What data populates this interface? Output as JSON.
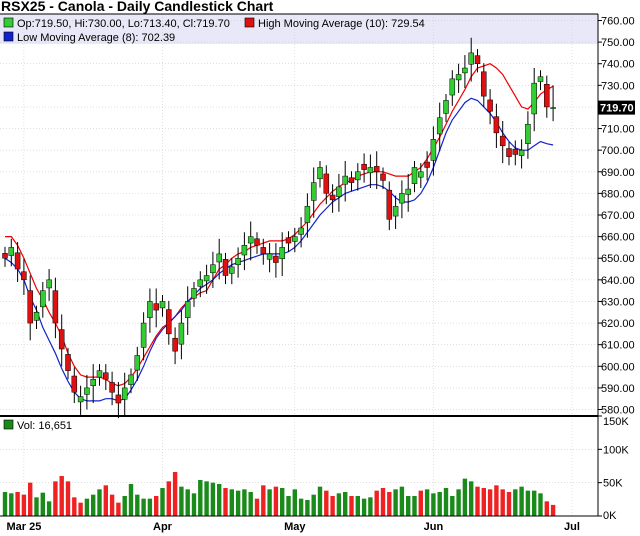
{
  "chart_data": {
    "type": "candlestick",
    "title": "RSX25 - Canola - Daily Candlestick Chart",
    "ohlc_label": "Op:719.50, Hi:730.00, Lo:713.40, Cl:719.70",
    "high_ma_label": "High Moving Average (10): 729.54",
    "low_ma_label": "Low Moving Average (8): 702.39",
    "last_price_label": "719.70",
    "volume_label": "Vol: 16,651",
    "grid": true,
    "price_axis": {
      "min": 577,
      "max": 763,
      "ticks": [
        580,
        590,
        600,
        610,
        620,
        630,
        640,
        650,
        660,
        670,
        680,
        690,
        700,
        710,
        720,
        730,
        740,
        750,
        760
      ],
      "tick_labels": [
        "580.00",
        "590.00",
        "600.00",
        "610.00",
        "620.00",
        "630.00",
        "640.00",
        "650.00",
        "660.00",
        "670.00",
        "680.00",
        "690.00",
        "700.00",
        "710.00",
        "720.00",
        "730.00",
        "740.00",
        "750.00",
        "760.00"
      ]
    },
    "volume_axis": {
      "max": 150000,
      "ticks": [
        0,
        50000,
        100000,
        150000
      ],
      "tick_labels": [
        "0K",
        "50K",
        "100K",
        "150K"
      ]
    },
    "x_labels": [
      {
        "label": "Mar 25",
        "index": 3
      },
      {
        "label": "Apr",
        "index": 25
      },
      {
        "label": "May",
        "index": 46
      },
      {
        "label": "Jun",
        "index": 68
      },
      {
        "label": "Jul",
        "index": 90
      }
    ],
    "closes": [
      650,
      655,
      645,
      640,
      620,
      625,
      635,
      640,
      620,
      608,
      598,
      588,
      586,
      590,
      594,
      598,
      594,
      588,
      583,
      590,
      596,
      605,
      620,
      630,
      626,
      630,
      615,
      607,
      620,
      630,
      636,
      640,
      642,
      647,
      652,
      642,
      646,
      650,
      656,
      660,
      656,
      652,
      652,
      648,
      655,
      657,
      660,
      664,
      674,
      685,
      692,
      680,
      677,
      683,
      688,
      685,
      690,
      691,
      692,
      690,
      686,
      668,
      674,
      680,
      682,
      692,
      690,
      692,
      705,
      715,
      723,
      733,
      735,
      738,
      745,
      740,
      725,
      718,
      708,
      702,
      697,
      698,
      700,
      712,
      731,
      734,
      720,
      719.7
    ],
    "volume": [
      36000,
      34000,
      36000,
      32000,
      50000,
      28000,
      35000,
      22000,
      52000,
      60000,
      52000,
      28000,
      20000,
      26000,
      32000,
      40000,
      46000,
      32000,
      20000,
      30000,
      48000,
      32000,
      26000,
      26000,
      30000,
      42000,
      52000,
      66000,
      44000,
      40000,
      34000,
      54000,
      52000,
      50000,
      48000,
      42000,
      40000,
      38000,
      40000,
      36000,
      26000,
      46000,
      40000,
      44000,
      42000,
      30000,
      40000,
      26000,
      24000,
      32000,
      44000,
      38000,
      30000,
      34000,
      36000,
      30000,
      30000,
      26000,
      28000,
      38000,
      42000,
      36000,
      40000,
      44000,
      30000,
      30000,
      38000,
      40000,
      34000,
      36000,
      42000,
      30000,
      40000,
      56000,
      52000,
      44000,
      42000,
      40000,
      46000,
      40000,
      36000,
      40000,
      44000,
      38000,
      38000,
      34000,
      22000,
      16651
    ],
    "high_ma": [
      660,
      660,
      656,
      650,
      643,
      636,
      631,
      625,
      620,
      614,
      606,
      600,
      596,
      595,
      595,
      595,
      594,
      592,
      591,
      592,
      595,
      599,
      604,
      609,
      614,
      618,
      620,
      623,
      627,
      630,
      632,
      634,
      635,
      640,
      645,
      647,
      650,
      652,
      653,
      655,
      656,
      657,
      658,
      658,
      658,
      659,
      661,
      664,
      667,
      671,
      675,
      678,
      681,
      683,
      685,
      686,
      688,
      689,
      690,
      690,
      690,
      689,
      688,
      688,
      688,
      690,
      692,
      696,
      701,
      706,
      712,
      718,
      723,
      728,
      734,
      738,
      739,
      740,
      738,
      735,
      730,
      725,
      720,
      719,
      722,
      726,
      728,
      729.54
    ],
    "low_ma": [
      650,
      648,
      645,
      640,
      632,
      626,
      618,
      612,
      606,
      599,
      593,
      588,
      585,
      584,
      584,
      584,
      585,
      585,
      584,
      585,
      589,
      594,
      600,
      607,
      613,
      617,
      620,
      623,
      626,
      630,
      633,
      636,
      638,
      640,
      643,
      645,
      647,
      648,
      649,
      650,
      651,
      652,
      652,
      652,
      652,
      653,
      655,
      658,
      662,
      666,
      670,
      673,
      676,
      678,
      680,
      681,
      682,
      683,
      684,
      684,
      683,
      681,
      678,
      676,
      676,
      677,
      680,
      685,
      692,
      700,
      708,
      714,
      718,
      722,
      724,
      723,
      720,
      717,
      713,
      708,
      704,
      701,
      700,
      700,
      702,
      704,
      703,
      702.39
    ],
    "colors": {
      "up": "#33cc33",
      "down": "#dd1111",
      "wick": "#000000",
      "high_ma": "#ee0000",
      "low_ma": "#1122cc",
      "volume_up": "#1a8a1a",
      "volume_down": "#ee2222",
      "legend_band": "#e8e8f8",
      "grid": "#cccccc",
      "last_price_box": "#000000"
    }
  }
}
